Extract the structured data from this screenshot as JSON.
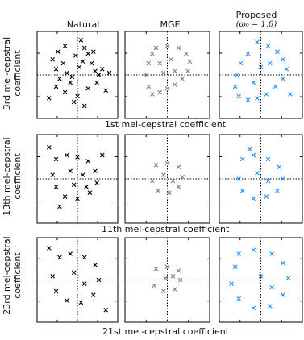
{
  "columns": [
    "Natural",
    "MGE",
    "Proposed"
  ],
  "proposed_subtitle": "(ω₀ = 1.0)",
  "rows": [
    {
      "ylabel_line1": "3rd mel-cepstral",
      "ylabel_line2": "coefficient",
      "xlabel": "1st mel-cepstral coefficient"
    },
    {
      "ylabel_line1": "13th mel-cepstral",
      "ylabel_line2": "coefficient",
      "xlabel": "11th mel-cepstral coefficient"
    },
    {
      "ylabel_line1": "23rd mel-cepstral",
      "ylabel_line2": "coefficient",
      "xlabel": "21st mel-cepstral coefficient"
    }
  ],
  "colors": {
    "natural": "#000000",
    "mge": "#808080",
    "proposed": "#1e90ff"
  },
  "chart_data": [
    {
      "type": "scatter",
      "row": 0,
      "col": 0,
      "marker": "x",
      "color": "#000000",
      "grid": "dotted center lines",
      "points": [
        [
          -0.35,
          0.75
        ],
        [
          -0.55,
          0.6
        ],
        [
          -0.7,
          0.4
        ],
        [
          -0.4,
          0.3
        ],
        [
          -0.6,
          0.15
        ],
        [
          -0.3,
          0.05
        ],
        [
          -0.5,
          -0.1
        ],
        [
          -0.2,
          -0.2
        ],
        [
          -0.6,
          -0.3
        ],
        [
          -0.35,
          -0.45
        ],
        [
          0.1,
          0.9
        ],
        [
          0.2,
          0.7
        ],
        [
          0.3,
          0.55
        ],
        [
          0.15,
          0.35
        ],
        [
          0.4,
          0.3
        ],
        [
          0.5,
          0.1
        ],
        [
          0.6,
          0.0
        ],
        [
          0.7,
          0.15
        ],
        [
          0.55,
          -0.2
        ],
        [
          0.3,
          -0.35
        ],
        [
          0.0,
          -0.55
        ],
        [
          -0.1,
          -0.7
        ],
        [
          0.2,
          -0.8
        ],
        [
          0.8,
          -0.4
        ],
        [
          0.9,
          0.05
        ],
        [
          -0.8,
          -0.6
        ],
        [
          -0.05,
          0.5
        ],
        [
          0.05,
          0.2
        ],
        [
          -0.15,
          -0.05
        ],
        [
          0.45,
          0.6
        ]
      ]
    },
    {
      "type": "scatter",
      "row": 0,
      "col": 1,
      "marker": "x",
      "color": "#808080",
      "grid": "dotted center lines",
      "points": [
        [
          -0.3,
          0.7
        ],
        [
          0.0,
          0.75
        ],
        [
          0.3,
          0.7
        ],
        [
          0.5,
          0.55
        ],
        [
          0.6,
          0.35
        ],
        [
          0.55,
          0.1
        ],
        [
          0.4,
          -0.1
        ],
        [
          0.2,
          -0.25
        ],
        [
          0.0,
          -0.35
        ],
        [
          -0.2,
          -0.45
        ],
        [
          -0.4,
          -0.5
        ],
        [
          -0.5,
          -0.3
        ],
        [
          -0.55,
          0.0
        ],
        [
          -0.5,
          0.3
        ],
        [
          -0.4,
          0.55
        ],
        [
          0.1,
          0.4
        ],
        [
          0.2,
          0.1
        ],
        [
          -0.1,
          0.05
        ],
        [
          -0.2,
          0.3
        ]
      ]
    },
    {
      "type": "scatter",
      "row": 0,
      "col": 2,
      "marker": "x",
      "color": "#1e90ff",
      "grid": "dotted center lines",
      "points": [
        [
          -0.1,
          0.85
        ],
        [
          0.2,
          0.75
        ],
        [
          0.45,
          0.6
        ],
        [
          0.6,
          0.4
        ],
        [
          0.7,
          0.15
        ],
        [
          0.6,
          -0.1
        ],
        [
          0.4,
          -0.3
        ],
        [
          0.15,
          -0.5
        ],
        [
          -0.1,
          -0.6
        ],
        [
          -0.35,
          -0.65
        ],
        [
          -0.6,
          -0.55
        ],
        [
          -0.7,
          -0.3
        ],
        [
          -0.65,
          0.0
        ],
        [
          -0.55,
          0.3
        ],
        [
          -0.35,
          0.55
        ],
        [
          0.0,
          0.2
        ],
        [
          0.25,
          0.3
        ],
        [
          -0.2,
          -0.2
        ],
        [
          0.8,
          -0.5
        ]
      ]
    },
    {
      "type": "scatter",
      "row": 1,
      "col": 0,
      "marker": "x",
      "color": "#000000",
      "grid": "dotted center lines",
      "points": [
        [
          -0.6,
          0.5
        ],
        [
          -0.3,
          0.6
        ],
        [
          0.0,
          0.55
        ],
        [
          0.3,
          0.45
        ],
        [
          0.5,
          0.2
        ],
        [
          0.55,
          -0.1
        ],
        [
          0.35,
          -0.35
        ],
        [
          0.0,
          -0.5
        ],
        [
          -0.35,
          -0.45
        ],
        [
          -0.6,
          -0.2
        ],
        [
          -0.7,
          0.1
        ],
        [
          -0.2,
          0.2
        ],
        [
          0.15,
          0.1
        ],
        [
          -0.1,
          -0.15
        ],
        [
          0.25,
          -0.2
        ],
        [
          -0.8,
          0.8
        ],
        [
          0.7,
          0.6
        ],
        [
          -0.5,
          -0.7
        ]
      ]
    },
    {
      "type": "scatter",
      "row": 1,
      "col": 1,
      "marker": "x",
      "color": "#808080",
      "grid": "dotted center lines",
      "points": [
        [
          -0.3,
          0.35
        ],
        [
          0.0,
          0.4
        ],
        [
          0.3,
          0.3
        ],
        [
          0.4,
          0.05
        ],
        [
          0.3,
          -0.2
        ],
        [
          0.05,
          -0.35
        ],
        [
          -0.25,
          -0.3
        ],
        [
          -0.4,
          -0.05
        ],
        [
          -0.1,
          0.1
        ],
        [
          0.15,
          -0.05
        ]
      ]
    },
    {
      "type": "scatter",
      "row": 1,
      "col": 2,
      "marker": "x",
      "color": "#1e90ff",
      "grid": "dotted center lines",
      "points": [
        [
          -0.5,
          0.5
        ],
        [
          -0.2,
          0.6
        ],
        [
          0.2,
          0.5
        ],
        [
          0.5,
          0.3
        ],
        [
          0.6,
          0.0
        ],
        [
          0.45,
          -0.3
        ],
        [
          0.15,
          -0.45
        ],
        [
          -0.2,
          -0.5
        ],
        [
          -0.5,
          -0.3
        ],
        [
          -0.6,
          0.0
        ],
        [
          -0.1,
          0.15
        ],
        [
          0.2,
          -0.05
        ],
        [
          -0.3,
          0.75
        ]
      ]
    },
    {
      "type": "scatter",
      "row": 2,
      "col": 0,
      "marker": "x",
      "color": "#000000",
      "grid": "dotted center lines",
      "points": [
        [
          -0.5,
          0.6
        ],
        [
          -0.2,
          0.7
        ],
        [
          0.2,
          0.6
        ],
        [
          0.5,
          0.4
        ],
        [
          0.6,
          0.0
        ],
        [
          0.45,
          -0.4
        ],
        [
          0.1,
          -0.6
        ],
        [
          -0.3,
          -0.55
        ],
        [
          -0.6,
          -0.3
        ],
        [
          -0.7,
          0.1
        ],
        [
          -0.1,
          0.2
        ],
        [
          0.2,
          -0.1
        ],
        [
          -0.8,
          0.85
        ],
        [
          0.8,
          -0.8
        ]
      ]
    },
    {
      "type": "scatter",
      "row": 2,
      "col": 1,
      "marker": "x",
      "color": "#808080",
      "grid": "dotted center lines",
      "points": [
        [
          -0.3,
          0.3
        ],
        [
          0.0,
          0.35
        ],
        [
          0.3,
          0.25
        ],
        [
          0.35,
          0.0
        ],
        [
          0.2,
          -0.25
        ],
        [
          -0.1,
          -0.3
        ],
        [
          -0.35,
          -0.15
        ],
        [
          -0.05,
          0.05
        ],
        [
          0.15,
          0.1
        ]
      ]
    },
    {
      "type": "scatter",
      "row": 2,
      "col": 2,
      "marker": "x",
      "color": "#1e90ff",
      "grid": "dotted center lines",
      "points": [
        [
          -0.6,
          0.7
        ],
        [
          -0.2,
          0.8
        ],
        [
          0.3,
          0.7
        ],
        [
          0.6,
          0.45
        ],
        [
          0.75,
          0.05
        ],
        [
          0.6,
          -0.4
        ],
        [
          0.25,
          -0.7
        ],
        [
          -0.2,
          -0.75
        ],
        [
          -0.6,
          -0.5
        ],
        [
          -0.8,
          -0.1
        ],
        [
          -0.7,
          0.35
        ],
        [
          0.0,
          0.1
        ],
        [
          0.3,
          -0.2
        ]
      ]
    }
  ]
}
